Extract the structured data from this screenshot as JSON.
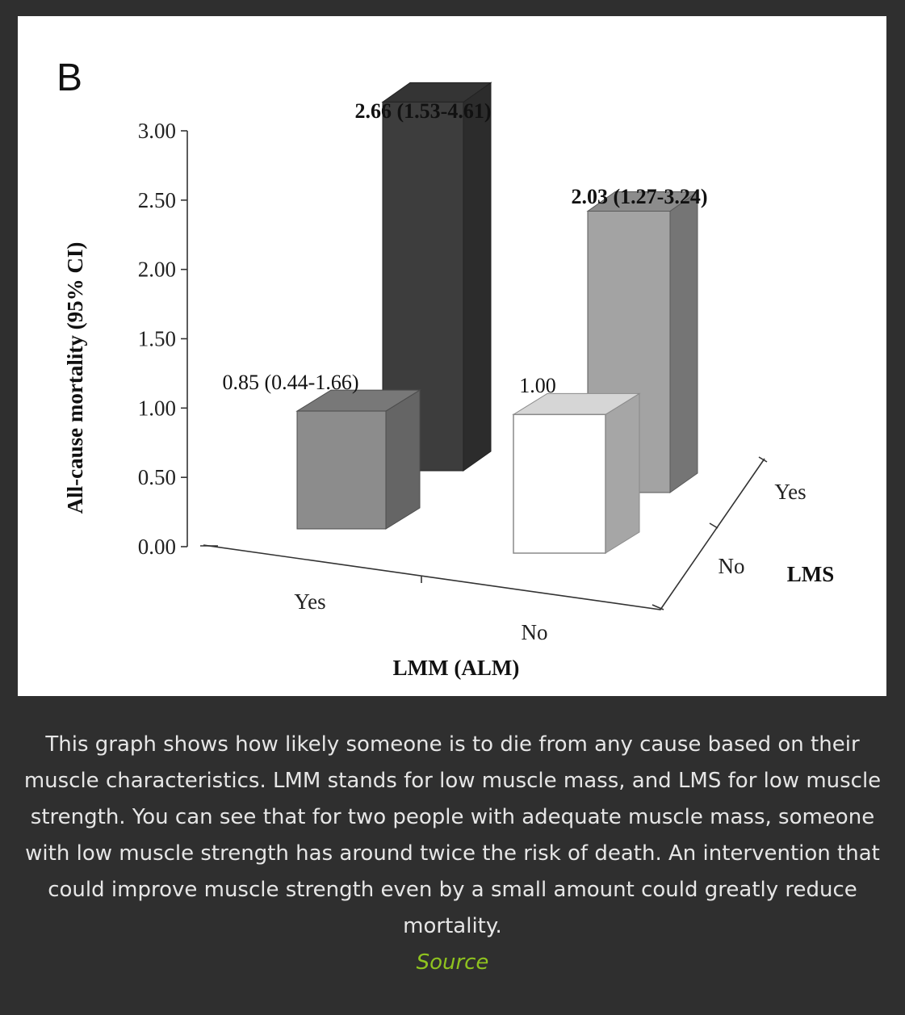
{
  "figure": {
    "panel_label": "B"
  },
  "chart_data": {
    "type": "bar",
    "style": "3d-grouped",
    "ylabel": "All-cause mortality (95% CI)",
    "xlabel": "LMM (ALM)",
    "zlabel": "LMS",
    "ylim": [
      0,
      3
    ],
    "yticks": [
      "0.00",
      "0.50",
      "1.00",
      "1.50",
      "2.00",
      "2.50",
      "3.00"
    ],
    "x_categories": [
      "Yes",
      "No"
    ],
    "z_categories": [
      "No",
      "Yes"
    ],
    "bars": [
      {
        "lmm": "Yes",
        "lms": "No",
        "value": 0.85,
        "label": "0.85 (0.44-1.66)",
        "color": "#8c8c8c",
        "bold": false
      },
      {
        "lmm": "Yes",
        "lms": "Yes",
        "value": 2.66,
        "label": "2.66 (1.53-4.61)",
        "color": "#3d3d3d",
        "bold": true
      },
      {
        "lmm": "No",
        "lms": "No",
        "value": 1.0,
        "label": "1.00",
        "color": "#ffffff",
        "bold": false
      },
      {
        "lmm": "No",
        "lms": "Yes",
        "value": 2.03,
        "label": "2.03 (1.27-3.24)",
        "color": "#a3a3a3",
        "bold": true
      }
    ],
    "grid": false,
    "legend": "none"
  },
  "caption": {
    "text": "This graph shows how likely someone is to die from any cause based on their muscle characteristics. LMM stands for low muscle mass, and LMS for low muscle strength. You can see that for two people with adequate muscle mass, someone with low muscle strength has around twice the risk of death. An intervention that could improve muscle strength even by a small amount could greatly reduce mortality.",
    "source_label": "Source"
  },
  "colors": {
    "page_background": "#2f2f2f",
    "caption_text": "#e6e6e6",
    "source_link": "#8fc31f"
  }
}
